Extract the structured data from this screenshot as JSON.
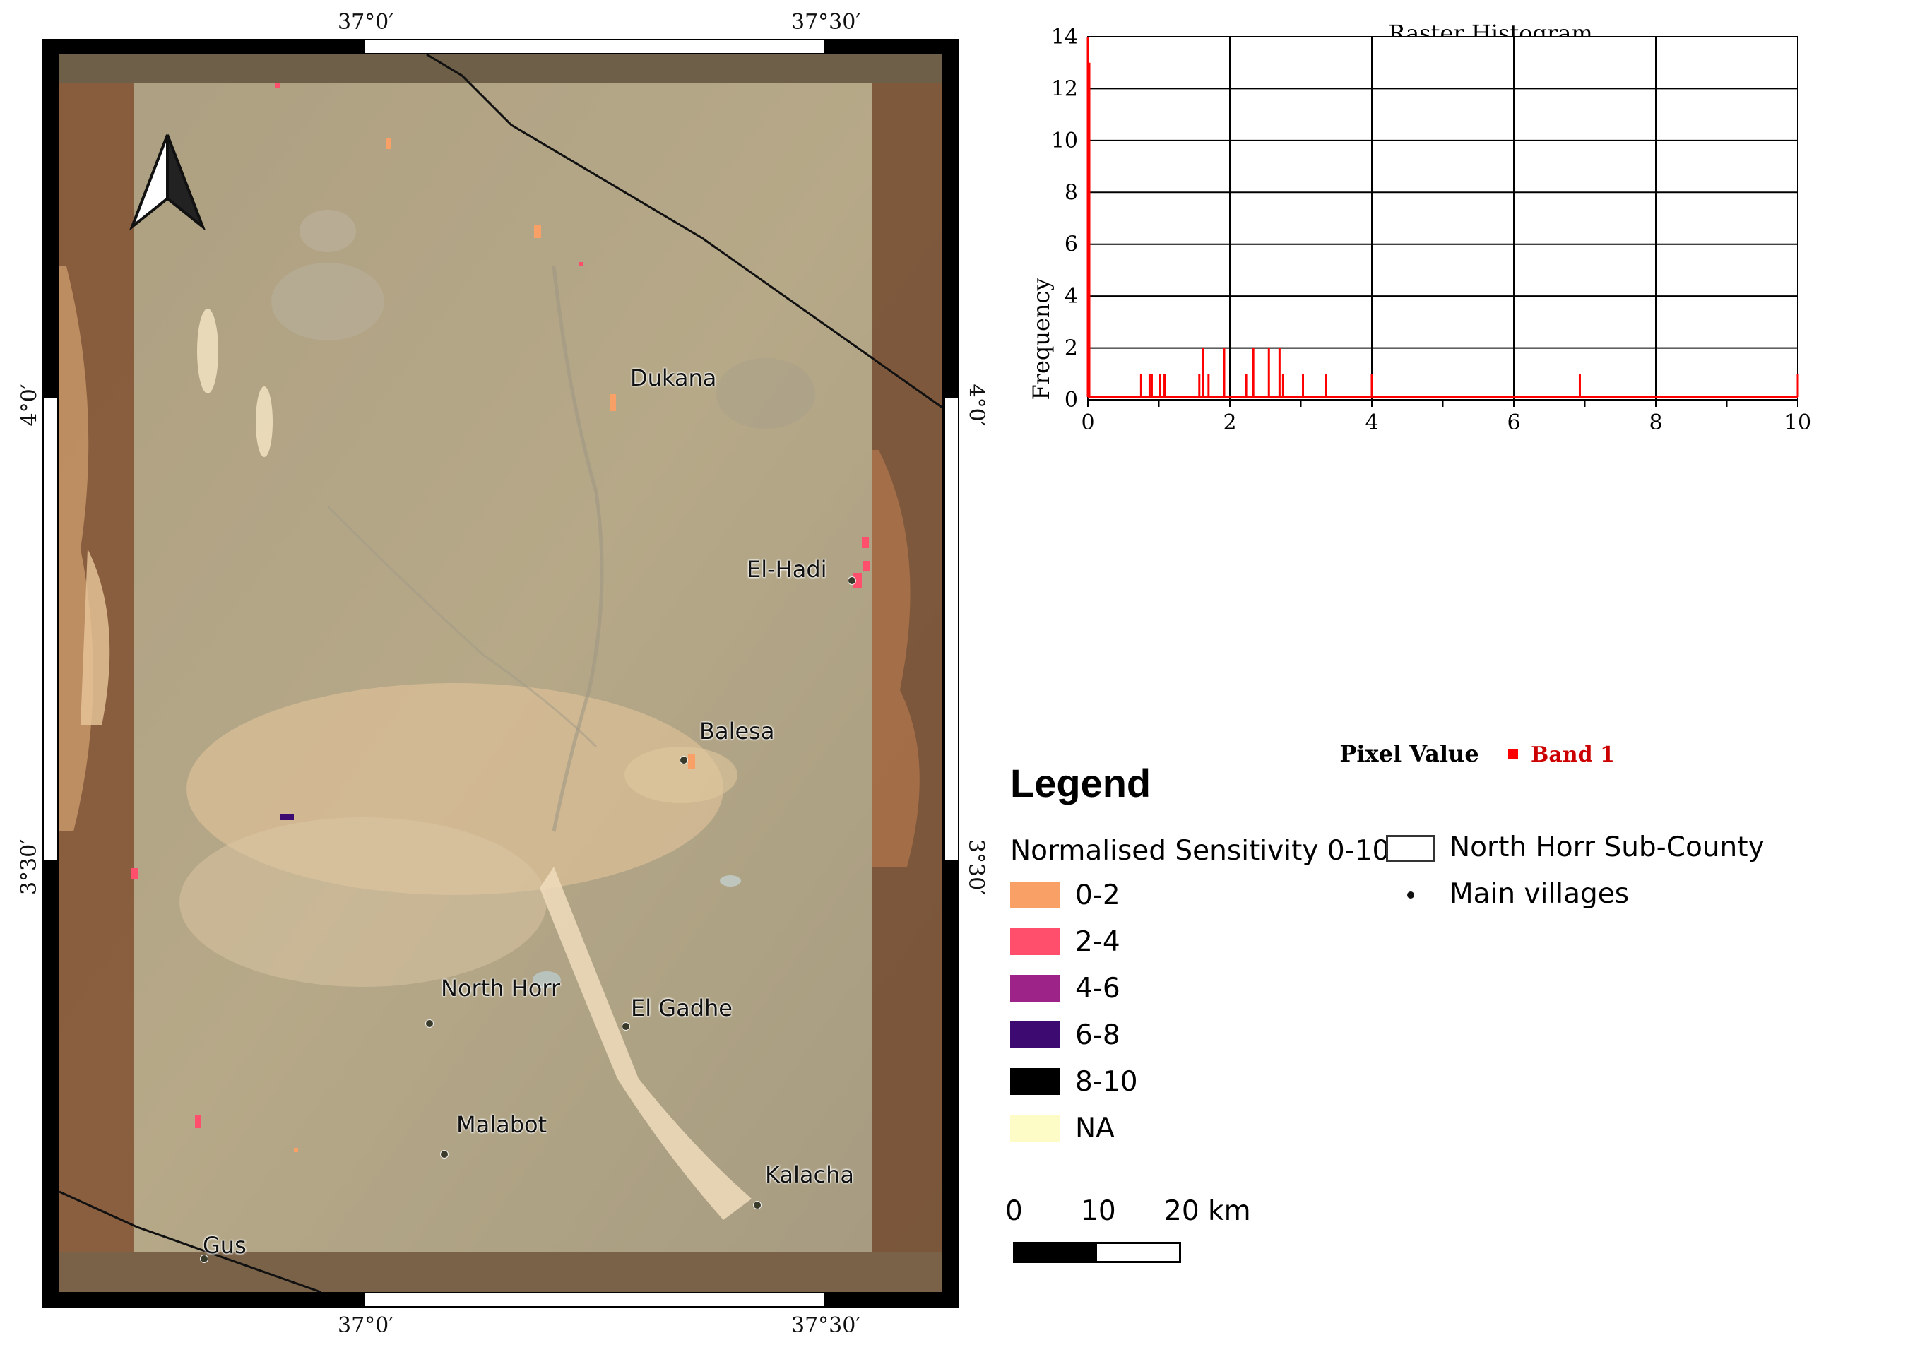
{
  "map": {
    "coords": {
      "top_lon_1": "37°0′",
      "top_lon_2": "37°30′",
      "bottom_lon_1": "37°0′",
      "bottom_lon_2": "37°30′",
      "left_lat_1": "4°0′",
      "left_lat_2": "3°30′",
      "right_lat_1": "4°0′",
      "right_lat_2": "3°30′"
    },
    "north_arrow_icon": "north-arrow-icon",
    "villages": [
      {
        "name": "Dukana"
      },
      {
        "name": "El-Hadi"
      },
      {
        "name": "Balesa"
      },
      {
        "name": "North Horr"
      },
      {
        "name": "El Gadhe"
      },
      {
        "name": "Malabot"
      },
      {
        "name": "Kalacha"
      },
      {
        "name": "Gus"
      }
    ]
  },
  "histogram": {
    "chart_data": {
      "type": "histogram",
      "title": "Raster Histogram",
      "xlabel": "Pixel Value",
      "ylabel": "Frequency",
      "xlim": [
        0,
        10
      ],
      "ylim": [
        0,
        14
      ],
      "x_ticks": [
        "0",
        "2",
        "4",
        "6",
        "8",
        "10"
      ],
      "y_ticks": [
        "0",
        "2",
        "4",
        "6",
        "8",
        "10",
        "12",
        "14"
      ],
      "grid": true,
      "legend": "Band 1",
      "series_color": "#ff0000",
      "spikes": [
        {
          "x": 0.0,
          "y": 14
        },
        {
          "x": 0.02,
          "y": 13
        },
        {
          "x": 0.75,
          "y": 1
        },
        {
          "x": 0.87,
          "y": 1
        },
        {
          "x": 0.9,
          "y": 1
        },
        {
          "x": 1.02,
          "y": 1
        },
        {
          "x": 1.08,
          "y": 1
        },
        {
          "x": 1.57,
          "y": 1
        },
        {
          "x": 1.62,
          "y": 2
        },
        {
          "x": 1.7,
          "y": 1
        },
        {
          "x": 1.92,
          "y": 2
        },
        {
          "x": 2.23,
          "y": 1
        },
        {
          "x": 2.33,
          "y": 2
        },
        {
          "x": 2.55,
          "y": 2
        },
        {
          "x": 2.7,
          "y": 2
        },
        {
          "x": 2.75,
          "y": 1
        },
        {
          "x": 3.03,
          "y": 1
        },
        {
          "x": 3.35,
          "y": 1
        },
        {
          "x": 4.0,
          "y": 1
        },
        {
          "x": 6.93,
          "y": 1
        },
        {
          "x": 10.0,
          "y": 1
        }
      ]
    }
  },
  "legend": {
    "title": "Legend",
    "sensitivity_header": "Normalised Sensitivity 0-10",
    "classes": [
      {
        "label": "0-2",
        "color": "#f8a066"
      },
      {
        "label": "2-4",
        "color": "#ff4f6d"
      },
      {
        "label": "4-6",
        "color": "#9e2388"
      },
      {
        "label": "6-8",
        "color": "#3c0a70"
      },
      {
        "label": "8-10",
        "color": "#000000"
      },
      {
        "label": "NA",
        "color": "#fefcc6"
      }
    ],
    "subcounty_label": "North Horr Sub-County",
    "villages_label": "Main villages"
  },
  "scale_bar": {
    "label_0": "0",
    "label_10": "10",
    "label_20": "20 km"
  }
}
